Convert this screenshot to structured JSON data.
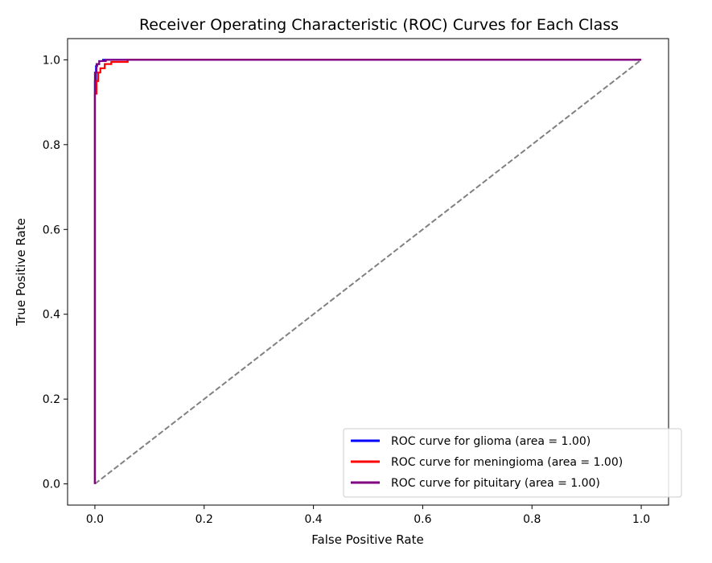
{
  "chart_data": {
    "type": "line",
    "title": "Receiver Operating Characteristic (ROC) Curves for Each Class",
    "xlabel": "False Positive Rate",
    "ylabel": "True Positive Rate",
    "xlim": [
      -0.05,
      1.05
    ],
    "ylim": [
      -0.05,
      1.05
    ],
    "xticks": [
      0.0,
      0.2,
      0.4,
      0.6,
      0.8,
      1.0
    ],
    "yticks": [
      0.0,
      0.2,
      0.4,
      0.6,
      0.8,
      1.0
    ],
    "xtick_labels": [
      "0.0",
      "0.2",
      "0.4",
      "0.6",
      "0.8",
      "1.0"
    ],
    "ytick_labels": [
      "0.0",
      "0.2",
      "0.4",
      "0.6",
      "0.8",
      "1.0"
    ],
    "grid": false,
    "legend_position": "lower-right",
    "series": [
      {
        "name": "ROC curve for glioma (area = 1.00)",
        "color": "#0000ff",
        "x": [
          0.0,
          0.0,
          0.002,
          0.002,
          0.004,
          0.004,
          0.008,
          0.008,
          0.015,
          0.015,
          1.0
        ],
        "y": [
          0.0,
          0.95,
          0.95,
          0.985,
          0.985,
          0.99,
          0.99,
          0.997,
          0.997,
          1.0,
          1.0
        ]
      },
      {
        "name": "ROC curve for meningioma (area = 1.00)",
        "color": "#ff0000",
        "x": [
          0.0,
          0.0,
          0.003,
          0.003,
          0.006,
          0.006,
          0.01,
          0.01,
          0.018,
          0.018,
          0.03,
          0.03,
          0.06,
          0.06,
          1.0
        ],
        "y": [
          0.0,
          0.92,
          0.92,
          0.95,
          0.95,
          0.97,
          0.97,
          0.98,
          0.98,
          0.99,
          0.99,
          0.995,
          0.995,
          1.0,
          1.0
        ]
      },
      {
        "name": "ROC curve for pituitary (area = 1.00)",
        "color": "#800080",
        "x": [
          0.0,
          0.0,
          0.003,
          0.003,
          0.008,
          0.008,
          0.02,
          0.02,
          1.0
        ],
        "y": [
          0.0,
          0.97,
          0.97,
          0.99,
          0.99,
          0.997,
          0.997,
          1.0,
          1.0
        ]
      }
    ],
    "reference_line": {
      "color": "#808080",
      "style": "dashed",
      "x": [
        0.0,
        1.0
      ],
      "y": [
        0.0,
        1.0
      ]
    }
  }
}
